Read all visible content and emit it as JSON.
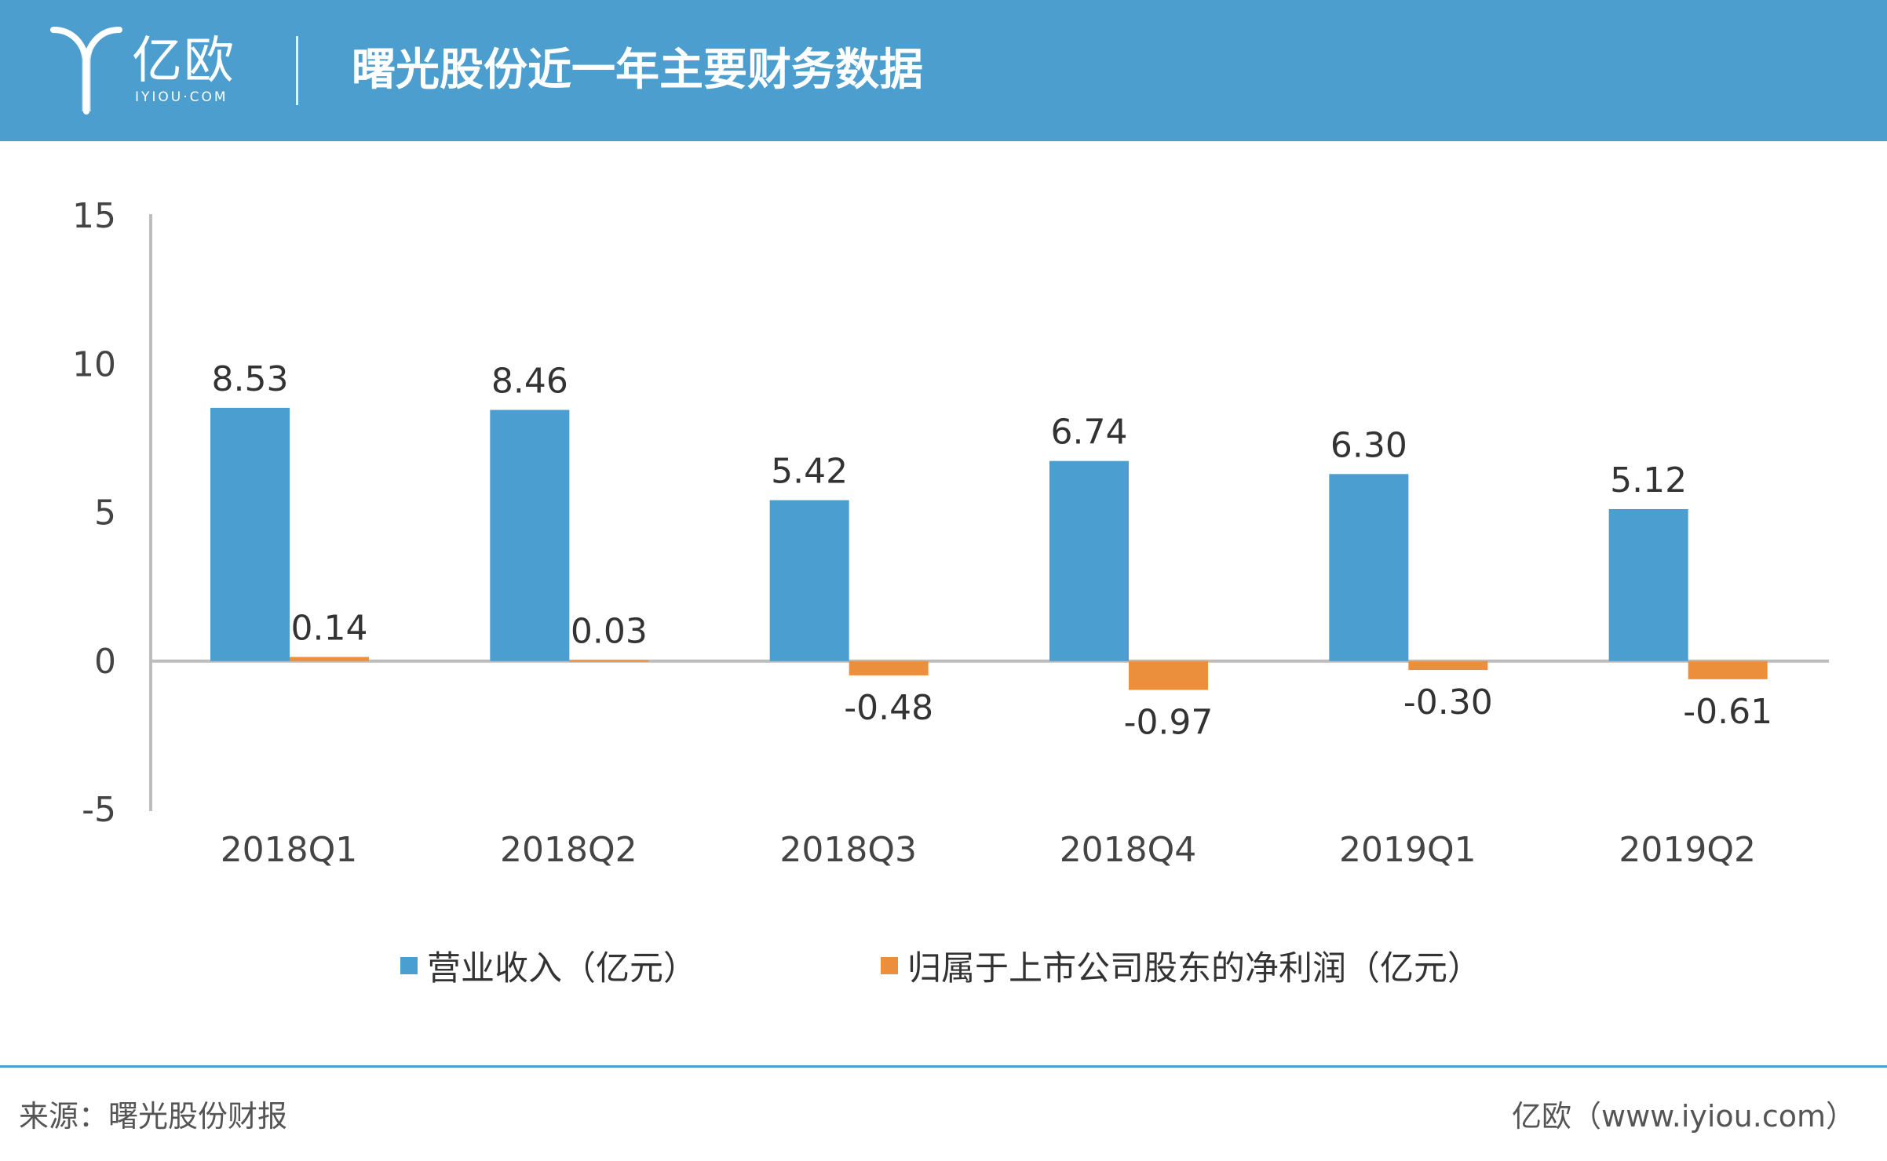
{
  "header": {
    "logo_text": "亿欧",
    "logo_subtext": "IYIOU·COM",
    "title": "曙光股份近一年主要财务数据"
  },
  "colors": {
    "header_bg": "#4c9ece",
    "revenue": "#4a9ed0",
    "net_profit": "#eb8f3c",
    "axis": "#bdbdbd"
  },
  "chart_data": {
    "type": "bar",
    "title": "曙光股份近一年主要财务数据",
    "categories": [
      "2018Q1",
      "2018Q2",
      "2018Q3",
      "2018Q4",
      "2019Q1",
      "2019Q2"
    ],
    "series": [
      {
        "name": "营业收入（亿元）",
        "values": [
          8.53,
          8.46,
          5.42,
          6.74,
          6.3,
          5.12
        ],
        "labels": [
          "8.53",
          "8.46",
          "5.42",
          "6.74",
          "6.30",
          "5.12"
        ]
      },
      {
        "name": "归属于上市公司股东的净利润（亿元）",
        "values": [
          0.14,
          0.03,
          -0.48,
          -0.97,
          -0.3,
          -0.61
        ],
        "labels": [
          "0.14",
          "0.03",
          "-0.48",
          "-0.97",
          "-0.30",
          "-0.61"
        ]
      }
    ],
    "ylim": [
      -5,
      15
    ],
    "yticks": [
      -5,
      0,
      5,
      10,
      15
    ],
    "xlabel": "",
    "ylabel": "",
    "grid": false,
    "legend_position": "bottom"
  },
  "legend": {
    "items": [
      {
        "label": "营业收入（亿元）",
        "color": "#4a9ed0"
      },
      {
        "label": "归属于上市公司股东的净利润（亿元）",
        "color": "#eb8f3c"
      }
    ]
  },
  "footer": {
    "source": "来源：曙光股份财报",
    "site": "亿欧（www.iyiou.com）"
  }
}
